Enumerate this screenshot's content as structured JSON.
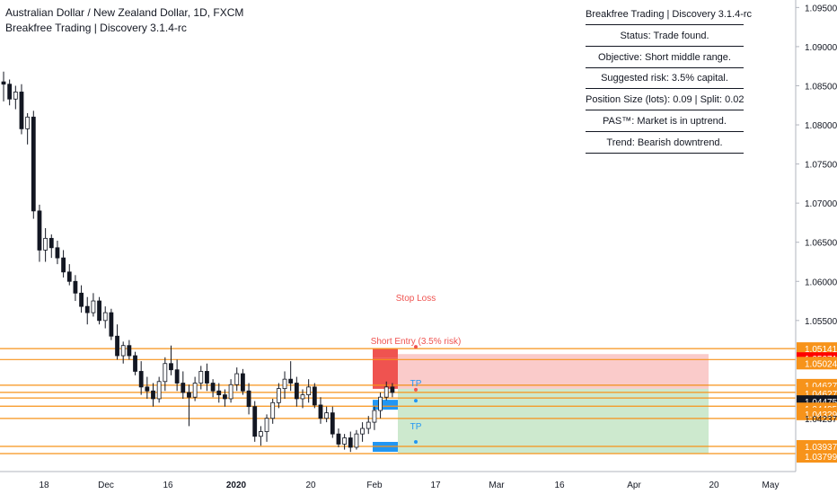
{
  "header": {
    "title": "Australian Dollar / New Zealand Dollar, 1D, FXCM",
    "subtitle": "Breakfree Trading | Discovery 3.1.4-rc"
  },
  "panel": [
    "Breakfree Trading | Discovery 3.1.4-rc",
    "Status: Trade found.",
    "Objective: Short middle range.",
    "Suggested risk: 3.5% capital.",
    "Position Size (lots): 0.09 | Split: 0.02",
    "PAS™: Market is in uptrend.",
    "Trend: Bearish downtrend."
  ],
  "annotations": {
    "stop_loss": "Stop Loss",
    "short_entry": "Short Entry (3.5% risk)",
    "tp1": "TP",
    "tp2": "TP"
  },
  "colors": {
    "up": "#ffffff",
    "down": "#131722",
    "level_line": "#f7931a",
    "stop_zone": "#ef5350",
    "profit_zone": "#4caf50",
    "tp_marker": "#2196f3",
    "price_tag_orange": "#f7931a",
    "price_tag_red": "#ff0000",
    "price_tag_dark": "#131722"
  },
  "chart_data": {
    "type": "candlestick",
    "x_tick_labels": [
      "18",
      "Dec",
      "16",
      "2020",
      "20",
      "Feb",
      "17",
      "Mar",
      "16",
      "Apr",
      "20",
      "May"
    ],
    "y_tick_labels": [
      "1.09500",
      "1.09000",
      "1.08500",
      "1.08000",
      "1.07500",
      "1.07000",
      "1.06500",
      "1.06000",
      "1.05500"
    ],
    "ylim": [
      1.0365,
      1.0955
    ],
    "horizontal_levels": [
      1.05141,
      1.05071,
      1.05024,
      1.04627,
      1.04627,
      1.04405,
      1.04237,
      1.03937,
      1.03799
    ],
    "price_tags": [
      {
        "label": "1.05141",
        "value": 1.05141,
        "style": "orange"
      },
      {
        "label": "1.05071",
        "value": 1.05071,
        "style": "red"
      },
      {
        "label": "1.05024",
        "value": 1.05024,
        "style": "orange"
      },
      {
        "label": "1.04627",
        "value": 1.04627,
        "style": "orange"
      },
      {
        "label": "1.04627",
        "value": 1.04627,
        "style": "orange"
      },
      {
        "label": "1.04546",
        "value": 1.04546,
        "style": "plain"
      },
      {
        "label": "1.04475",
        "value": 1.04475,
        "style": "dark"
      },
      {
        "label": "1.04405",
        "value": 1.04405,
        "style": "orange"
      },
      {
        "label": "1.04329",
        "value": 1.04329,
        "style": "orange"
      },
      {
        "label": "1.04237",
        "value": 1.04237,
        "style": "plain"
      },
      {
        "label": "1.03937",
        "value": 1.03937,
        "style": "orange"
      },
      {
        "label": "1.03799",
        "value": 1.03799,
        "style": "orange"
      }
    ],
    "candles": [
      [
        1.0855,
        1.0868,
        1.083,
        1.0852
      ],
      [
        1.0852,
        1.0858,
        1.0825,
        1.0833
      ],
      [
        1.0833,
        1.085,
        1.082,
        1.0842
      ],
      [
        1.0842,
        1.0852,
        1.0788,
        1.0795
      ],
      [
        1.0795,
        1.0815,
        1.0775,
        1.081
      ],
      [
        1.081,
        1.0818,
        1.068,
        1.069
      ],
      [
        1.069,
        1.0698,
        1.0625,
        1.064
      ],
      [
        1.064,
        1.0668,
        1.0625,
        1.0655
      ],
      [
        1.0655,
        1.066,
        1.063,
        1.0643
      ],
      [
        1.0643,
        1.0652,
        1.0622,
        1.063
      ],
      [
        1.063,
        1.064,
        1.0605,
        1.0612
      ],
      [
        1.0612,
        1.0622,
        1.0595,
        1.06
      ],
      [
        1.06,
        1.0608,
        1.0575,
        1.0585
      ],
      [
        1.0585,
        1.0595,
        1.056,
        1.0568
      ],
      [
        1.0568,
        1.058,
        1.0545,
        1.056
      ],
      [
        1.056,
        1.0585,
        1.0555,
        1.0575
      ],
      [
        1.0575,
        1.058,
        1.0545,
        1.055
      ],
      [
        1.055,
        1.0568,
        1.054,
        1.056
      ],
      [
        1.056,
        1.0565,
        1.0525,
        1.053
      ],
      [
        1.053,
        1.0545,
        1.05,
        1.0505
      ],
      [
        1.0505,
        1.0523,
        1.0495,
        1.0518
      ],
      [
        1.0518,
        1.0525,
        1.05,
        1.0505
      ],
      [
        1.0505,
        1.051,
        1.048,
        1.0485
      ],
      [
        1.0485,
        1.0498,
        1.0455,
        1.0465
      ],
      [
        1.0465,
        1.0478,
        1.045,
        1.046
      ],
      [
        1.046,
        1.047,
        1.044,
        1.045
      ],
      [
        1.045,
        1.0478,
        1.0445,
        1.0472
      ],
      [
        1.0472,
        1.0503,
        1.046,
        1.0495
      ],
      [
        1.0495,
        1.0518,
        1.048,
        1.0487
      ],
      [
        1.0487,
        1.05,
        1.046,
        1.047
      ],
      [
        1.047,
        1.0485,
        1.045,
        1.0458
      ],
      [
        1.0458,
        1.0468,
        1.0415,
        1.0452
      ],
      [
        1.0452,
        1.0478,
        1.0447,
        1.047
      ],
      [
        1.047,
        1.0492,
        1.0462,
        1.0485
      ],
      [
        1.0485,
        1.0495,
        1.046,
        1.047
      ],
      [
        1.047,
        1.0475,
        1.0452,
        1.046
      ],
      [
        1.046,
        1.047,
        1.0445,
        1.0455
      ],
      [
        1.0455,
        1.0462,
        1.044,
        1.045
      ],
      [
        1.045,
        1.0475,
        1.0445,
        1.0468
      ],
      [
        1.0468,
        1.049,
        1.046,
        1.0482
      ],
      [
        1.0482,
        1.0488,
        1.0455,
        1.046
      ],
      [
        1.046,
        1.047,
        1.043,
        1.044
      ],
      [
        1.044,
        1.0447,
        1.0395,
        1.0402
      ],
      [
        1.0402,
        1.0415,
        1.039,
        1.0408
      ],
      [
        1.0408,
        1.043,
        1.0395,
        1.0425
      ],
      [
        1.0425,
        1.045,
        1.0418,
        1.0445
      ],
      [
        1.0445,
        1.047,
        1.0438,
        1.0463
      ],
      [
        1.0463,
        1.0485,
        1.045,
        1.0475
      ],
      [
        1.0475,
        1.0498,
        1.046,
        1.047
      ],
      [
        1.047,
        1.0478,
        1.044,
        1.045
      ],
      [
        1.045,
        1.0462,
        1.0438,
        1.0455
      ],
      [
        1.0455,
        1.0475,
        1.0445,
        1.0465
      ],
      [
        1.0465,
        1.047,
        1.0438,
        1.0442
      ],
      [
        1.0442,
        1.0452,
        1.0418,
        1.0425
      ],
      [
        1.0425,
        1.044,
        1.042,
        1.0432
      ],
      [
        1.0432,
        1.044,
        1.04,
        1.0405
      ],
      [
        1.0405,
        1.0412,
        1.0388,
        1.0392
      ],
      [
        1.0392,
        1.0405,
        1.0385,
        1.04
      ],
      [
        1.04,
        1.0408,
        1.0382,
        1.0388
      ],
      [
        1.0388,
        1.041,
        1.0385,
        1.0405
      ],
      [
        1.0405,
        1.042,
        1.0395,
        1.0412
      ],
      [
        1.0412,
        1.0428,
        1.0405,
        1.042
      ],
      [
        1.042,
        1.044,
        1.041,
        1.0435
      ],
      [
        1.0435,
        1.0458,
        1.0425,
        1.0452
      ],
      [
        1.0452,
        1.0472,
        1.0448,
        1.0465
      ],
      [
        1.0465,
        1.047,
        1.0452,
        1.0458
      ]
    ]
  }
}
